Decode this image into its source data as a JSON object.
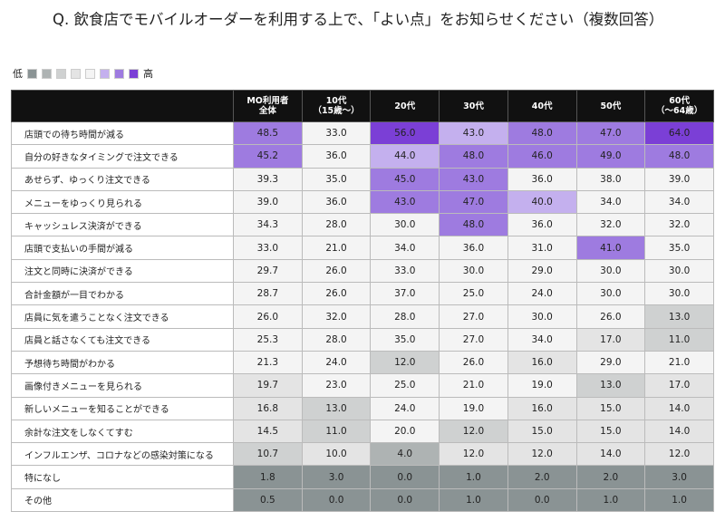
{
  "title": "Q. 飲食店でモバイルオーダーを利用する上で、「よい点」をお知らせください（複数回答）",
  "legend": {
    "low": "低",
    "high": "高",
    "colors": [
      "#8a9394",
      "#aeb3b3",
      "#cfd1d1",
      "#e4e4e4",
      "#f4f4f4",
      "#c4b0ee",
      "#9e7be0",
      "#7b3fd6"
    ]
  },
  "table": {
    "columns": [
      "MO利用者\n全体",
      "10代\n（15歳〜）",
      "20代",
      "30代",
      "40代",
      "50代",
      "60代\n（〜64歳）"
    ],
    "rows": [
      {
        "label": "店頭での待ち時間が減る",
        "values": [
          "48.5",
          "33.0",
          "56.0",
          "43.0",
          "48.0",
          "47.0",
          "64.0"
        ],
        "colors": [
          "#9e7be0",
          "#f4f4f4",
          "#7b3fd6",
          "#c4b0ee",
          "#9e7be0",
          "#9e7be0",
          "#7b3fd6"
        ]
      },
      {
        "label": "自分の好きなタイミングで注文できる",
        "values": [
          "45.2",
          "36.0",
          "44.0",
          "48.0",
          "46.0",
          "49.0",
          "48.0"
        ],
        "colors": [
          "#9e7be0",
          "#f4f4f4",
          "#c4b0ee",
          "#9e7be0",
          "#9e7be0",
          "#9e7be0",
          "#9e7be0"
        ]
      },
      {
        "label": "あせらず、ゆっくり注文できる",
        "values": [
          "39.3",
          "35.0",
          "45.0",
          "43.0",
          "36.0",
          "38.0",
          "39.0"
        ],
        "colors": [
          "#f4f4f4",
          "#f4f4f4",
          "#9e7be0",
          "#9e7be0",
          "#f4f4f4",
          "#f4f4f4",
          "#f4f4f4"
        ]
      },
      {
        "label": "メニューをゆっくり見られる",
        "values": [
          "39.0",
          "36.0",
          "43.0",
          "47.0",
          "40.0",
          "34.0",
          "34.0"
        ],
        "colors": [
          "#f4f4f4",
          "#f4f4f4",
          "#9e7be0",
          "#9e7be0",
          "#c4b0ee",
          "#f4f4f4",
          "#f4f4f4"
        ]
      },
      {
        "label": "キャッシュレス決済ができる",
        "values": [
          "34.3",
          "28.0",
          "30.0",
          "48.0",
          "36.0",
          "32.0",
          "32.0"
        ],
        "colors": [
          "#f4f4f4",
          "#f4f4f4",
          "#f4f4f4",
          "#9e7be0",
          "#f4f4f4",
          "#f4f4f4",
          "#f4f4f4"
        ]
      },
      {
        "label": "店頭で支払いの手間が減る",
        "values": [
          "33.0",
          "21.0",
          "34.0",
          "36.0",
          "31.0",
          "41.0",
          "35.0"
        ],
        "colors": [
          "#f4f4f4",
          "#f4f4f4",
          "#f4f4f4",
          "#f4f4f4",
          "#f4f4f4",
          "#9e7be0",
          "#f4f4f4"
        ]
      },
      {
        "label": "注文と同時に決済ができる",
        "values": [
          "29.7",
          "26.0",
          "33.0",
          "30.0",
          "29.0",
          "30.0",
          "30.0"
        ],
        "colors": [
          "#f4f4f4",
          "#f4f4f4",
          "#f4f4f4",
          "#f4f4f4",
          "#f4f4f4",
          "#f4f4f4",
          "#f4f4f4"
        ]
      },
      {
        "label": "合計金額が一目でわかる",
        "values": [
          "28.7",
          "26.0",
          "37.0",
          "25.0",
          "24.0",
          "30.0",
          "30.0"
        ],
        "colors": [
          "#f4f4f4",
          "#f4f4f4",
          "#f4f4f4",
          "#f4f4f4",
          "#f4f4f4",
          "#f4f4f4",
          "#f4f4f4"
        ]
      },
      {
        "label": "店員に気を遣うことなく注文できる",
        "values": [
          "26.0",
          "32.0",
          "28.0",
          "27.0",
          "30.0",
          "26.0",
          "13.0"
        ],
        "colors": [
          "#f4f4f4",
          "#f4f4f4",
          "#f4f4f4",
          "#f4f4f4",
          "#f4f4f4",
          "#f4f4f4",
          "#cfd1d1"
        ]
      },
      {
        "label": "店員と話さなくても注文できる",
        "values": [
          "25.3",
          "28.0",
          "35.0",
          "27.0",
          "34.0",
          "17.0",
          "11.0"
        ],
        "colors": [
          "#f4f4f4",
          "#f4f4f4",
          "#f4f4f4",
          "#f4f4f4",
          "#f4f4f4",
          "#e4e4e4",
          "#cfd1d1"
        ]
      },
      {
        "label": "予想待ち時間がわかる",
        "values": [
          "21.3",
          "24.0",
          "12.0",
          "26.0",
          "16.0",
          "29.0",
          "21.0"
        ],
        "colors": [
          "#f4f4f4",
          "#f4f4f4",
          "#cfd1d1",
          "#f4f4f4",
          "#e4e4e4",
          "#f4f4f4",
          "#f4f4f4"
        ]
      },
      {
        "label": "画像付きメニューを見られる",
        "values": [
          "19.7",
          "23.0",
          "25.0",
          "21.0",
          "19.0",
          "13.0",
          "17.0"
        ],
        "colors": [
          "#e4e4e4",
          "#f4f4f4",
          "#f4f4f4",
          "#f4f4f4",
          "#f4f4f4",
          "#cfd1d1",
          "#e4e4e4"
        ]
      },
      {
        "label": "新しいメニューを知ることができる",
        "values": [
          "16.8",
          "13.0",
          "24.0",
          "19.0",
          "16.0",
          "15.0",
          "14.0"
        ],
        "colors": [
          "#e4e4e4",
          "#cfd1d1",
          "#f4f4f4",
          "#f4f4f4",
          "#e4e4e4",
          "#e4e4e4",
          "#e4e4e4"
        ]
      },
      {
        "label": "余計な注文をしなくてすむ",
        "values": [
          "14.5",
          "11.0",
          "20.0",
          "12.0",
          "15.0",
          "15.0",
          "14.0"
        ],
        "colors": [
          "#e4e4e4",
          "#cfd1d1",
          "#f4f4f4",
          "#cfd1d1",
          "#e4e4e4",
          "#e4e4e4",
          "#e4e4e4"
        ]
      },
      {
        "label": "インフルエンザ、コロナなどの感染対策になる",
        "values": [
          "10.7",
          "10.0",
          "4.0",
          "12.0",
          "12.0",
          "14.0",
          "12.0"
        ],
        "colors": [
          "#cfd1d1",
          "#e4e4e4",
          "#aeb3b3",
          "#e4e4e4",
          "#e4e4e4",
          "#e4e4e4",
          "#e4e4e4"
        ]
      },
      {
        "label": "特になし",
        "values": [
          "1.8",
          "3.0",
          "0.0",
          "1.0",
          "2.0",
          "2.0",
          "3.0"
        ],
        "colors": [
          "#8a9394",
          "#8a9394",
          "#8a9394",
          "#8a9394",
          "#8a9394",
          "#8a9394",
          "#8a9394"
        ]
      },
      {
        "label": "その他",
        "values": [
          "0.5",
          "0.0",
          "0.0",
          "1.0",
          "0.0",
          "1.0",
          "1.0"
        ],
        "colors": [
          "#8a9394",
          "#8a9394",
          "#8a9394",
          "#8a9394",
          "#8a9394",
          "#8a9394",
          "#8a9394"
        ]
      }
    ]
  }
}
